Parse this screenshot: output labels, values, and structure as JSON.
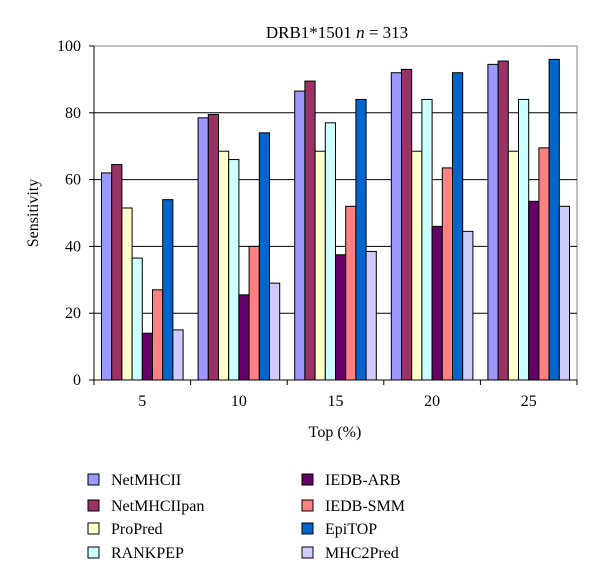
{
  "chart_data": {
    "type": "bar",
    "title_prefix": "DRB1*1501 ",
    "title_n_symbol": "n",
    "title_suffix": " = 313",
    "xlabel": "Top (%)",
    "ylabel": "Sensitivity",
    "ylim": [
      0,
      100
    ],
    "yticks": [
      "0",
      "20",
      "40",
      "60",
      "80",
      "100"
    ],
    "categories": [
      "5",
      "10",
      "15",
      "20",
      "25"
    ],
    "grid": true,
    "legend_position": "bottom",
    "series": [
      {
        "name": "NetMHCII",
        "color": "#9999ff",
        "values": [
          62,
          78.5,
          86.5,
          92,
          94.5
        ]
      },
      {
        "name": "NetMHCIIpan",
        "color": "#993366",
        "values": [
          64.5,
          79.5,
          89.5,
          93,
          95.5
        ]
      },
      {
        "name": "ProPred",
        "color": "#ffffcc",
        "values": [
          51.5,
          68.5,
          68.5,
          68.5,
          68.5
        ]
      },
      {
        "name": "RANKPEP",
        "color": "#ccffff",
        "values": [
          36.5,
          66,
          77,
          84,
          84
        ]
      },
      {
        "name": "IEDB-ARB",
        "color": "#660066",
        "values": [
          14,
          25.5,
          37.5,
          46,
          53.5
        ]
      },
      {
        "name": "IEDB-SMM",
        "color": "#ff8080",
        "values": [
          27,
          40,
          52,
          63.5,
          69.5
        ]
      },
      {
        "name": "EpiTOP",
        "color": "#0066cc",
        "values": [
          54,
          74,
          84,
          92,
          96
        ]
      },
      {
        "name": "MHC2Pred",
        "color": "#ccccff",
        "values": [
          15,
          29,
          38.5,
          44.5,
          52
        ]
      }
    ]
  }
}
